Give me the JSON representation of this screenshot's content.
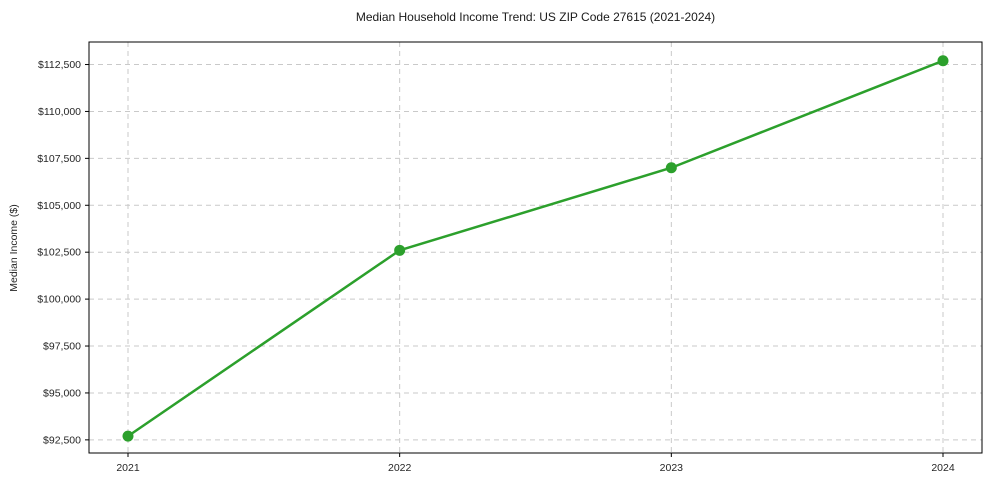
{
  "chart_data": {
    "type": "line",
    "title": "Median Household Income Trend: US ZIP Code 27615 (2021-2024)",
    "xlabel": "",
    "ylabel": "Median Income ($)",
    "categories": [
      "2021",
      "2022",
      "2023",
      "2024"
    ],
    "series": [
      {
        "name": "Median Household Income",
        "values": [
          92700,
          102600,
          107000,
          112700
        ]
      }
    ],
    "yticks": [
      {
        "value": 92500,
        "label": "$92,500"
      },
      {
        "value": 95000,
        "label": "$95,000"
      },
      {
        "value": 97500,
        "label": "$97,500"
      },
      {
        "value": 100000,
        "label": "$100,000"
      },
      {
        "value": 102500,
        "label": "$102,500"
      },
      {
        "value": 105000,
        "label": "$105,000"
      },
      {
        "value": 107500,
        "label": "$107,500"
      },
      {
        "value": 110000,
        "label": "$110,000"
      },
      {
        "value": 112500,
        "label": "$112,500"
      }
    ],
    "ylim": [
      91800,
      113700
    ],
    "grid": true,
    "grid_style": "dashed",
    "legend": "none",
    "line_color": "#2ca02c",
    "marker": "circle",
    "grid_color": "#c9c9c9",
    "spine_color": "#000000",
    "text_color": "#262626",
    "background_color": "#ffffff"
  }
}
